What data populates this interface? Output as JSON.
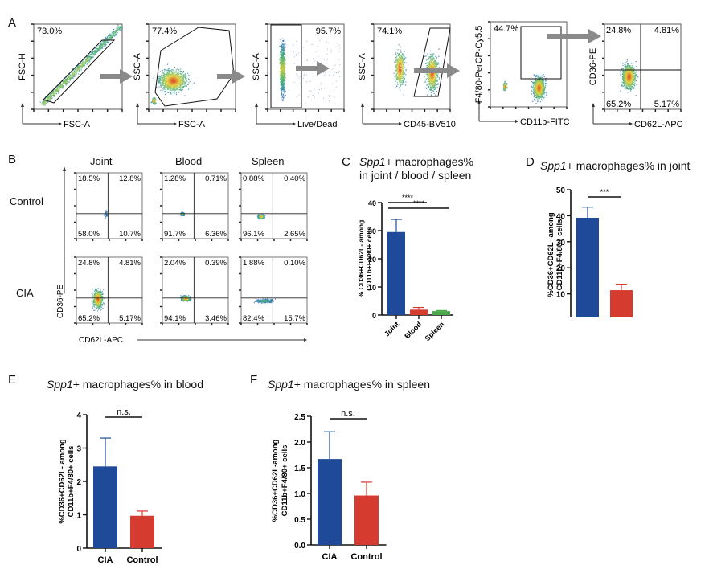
{
  "figure": {
    "panel_letters": {
      "A": "A",
      "B": "B",
      "C": "C",
      "D": "D",
      "E": "E",
      "F": "F"
    }
  },
  "panel_a": {
    "plots": [
      {
        "y_label": "FSC-H",
        "x_label": "FSC-A",
        "gate_pct": "73.0%",
        "gate": "diagonal"
      },
      {
        "y_label": "SSC-A",
        "x_label": "FSC-A",
        "gate_pct": "77.4%",
        "gate": "polygon"
      },
      {
        "y_label": "SSC-A",
        "x_label": "Live/Dead",
        "gate_pct": "95.7%",
        "gate": "rect-left"
      },
      {
        "y_label": "SSC-A",
        "x_label": "CD45-BV510",
        "gate_pct": "74.1%",
        "gate": "parallelogram"
      },
      {
        "y_label": "F4/80-PerCP-Cy5.5",
        "x_label": "CD11b-FITC",
        "gate_pct": "44.7%",
        "gate": "rect"
      },
      {
        "y_label": "CD36-PE",
        "x_label": "CD62L-APC",
        "gate": "quadrant",
        "quadrants": {
          "ul": "24.8%",
          "ur": "4.81%",
          "ll": "65.2%",
          "lr": "5.17%"
        }
      }
    ],
    "arrow_icon": "right-arrow-icon"
  },
  "panel_b": {
    "columns": [
      "Joint",
      "Blood",
      "Spleen"
    ],
    "rows": [
      "Control",
      "CIA"
    ],
    "y_axis": "CD36-PE",
    "x_axis": "CD62L-APC",
    "quadrants": [
      [
        {
          "ul": "18.5%",
          "ur": "12.8%",
          "ll": "58.0%",
          "lr": "10.7%"
        },
        {
          "ul": "1.28%",
          "ur": "0.71%",
          "ll": "91.7%",
          "lr": "6.36%"
        },
        {
          "ul": "0.88%",
          "ur": "0.40%",
          "ll": "96.1%",
          "lr": "2.65%"
        }
      ],
      [
        {
          "ul": "24.8%",
          "ur": "4.81%",
          "ll": "65.2%",
          "lr": "5.17%"
        },
        {
          "ul": "2.04%",
          "ur": "0.39%",
          "ll": "94.1%",
          "lr": "3.46%"
        },
        {
          "ul": "1.88%",
          "ur": "0.10%",
          "ll": "82.4%",
          "lr": "15.7%"
        }
      ]
    ]
  },
  "colors": {
    "blue": "#1f4a99",
    "red": "#d63b2f",
    "green": "#4aa84a"
  },
  "chart_data": [
    {
      "id": "C",
      "type": "bar",
      "title_italic": "Spp1",
      "title_rest": "+ macrophages%",
      "title_line2": "in joint / blood / spleen",
      "ylabel_line1": "% CD36+CD62L- among",
      "ylabel_line2": "CD11b+F4/80+ cells",
      "categories": [
        "Joint",
        "Blood",
        "Spleen"
      ],
      "values": [
        29.5,
        1.9,
        1.4
      ],
      "errors": [
        4.5,
        0.8,
        0.2
      ],
      "bar_colors": [
        "#1f4a99",
        "#d63b2f",
        "#4aa84a"
      ],
      "ylim": [
        0,
        40
      ],
      "yticks": [
        "0",
        "10",
        "20",
        "30",
        "40"
      ],
      "significance": [
        {
          "from": 0,
          "to": 1,
          "label": "****"
        },
        {
          "from": 0,
          "to": 2,
          "label": "****"
        }
      ],
      "rotated_xticks": true
    },
    {
      "id": "D",
      "type": "bar",
      "title_italic": "Spp1",
      "title_rest": "+ macrophages% in joint",
      "ylabel_line1": "%CD36+CD62L- among",
      "ylabel_line2": "CD11b+F4/80+ cells",
      "categories": [
        "CIA",
        "Control"
      ],
      "values": [
        39.2,
        11.4
      ],
      "errors": [
        4.1,
        2.3
      ],
      "bar_colors": [
        "#1f4a99",
        "#d63b2f"
      ],
      "ylim": [
        0,
        50
      ],
      "yticks": [
        "0",
        "10",
        "20",
        "30",
        "40",
        "50"
      ],
      "significance": [
        {
          "from": 0,
          "to": 1,
          "label": "***"
        }
      ]
    },
    {
      "id": "E",
      "type": "bar",
      "title_italic": "Spp1",
      "title_rest": "+ macrophages% in blood",
      "ylabel_line1": "%CD36+CD62L- among",
      "ylabel_line2": "CD11b+F4/80+ cells",
      "categories": [
        "CIA",
        "Control"
      ],
      "values": [
        2.45,
        0.97
      ],
      "errors": [
        0.85,
        0.14
      ],
      "bar_colors": [
        "#1f4a99",
        "#d63b2f"
      ],
      "ylim": [
        0,
        4
      ],
      "yticks": [
        "0",
        "1",
        "2",
        "3",
        "4"
      ],
      "significance": [
        {
          "from": 0,
          "to": 1,
          "label": "n.s."
        }
      ]
    },
    {
      "id": "F",
      "type": "bar",
      "title_italic": "Spp1",
      "title_rest": "+ macrophages% in spleen",
      "ylabel_line1": "%CD36+CD62L-among",
      "ylabel_line2": "CD11b+F4/80+ cells",
      "categories": [
        "CIA",
        "Control"
      ],
      "values": [
        1.67,
        0.96
      ],
      "errors": [
        0.53,
        0.26
      ],
      "bar_colors": [
        "#1f4a99",
        "#d63b2f"
      ],
      "ylim": [
        0,
        2.5
      ],
      "yticks": [
        "0.0",
        "0.5",
        "1.0",
        "1.5",
        "2.0",
        "2.5"
      ],
      "significance": [
        {
          "from": 0,
          "to": 1,
          "label": "n.s."
        }
      ]
    }
  ]
}
